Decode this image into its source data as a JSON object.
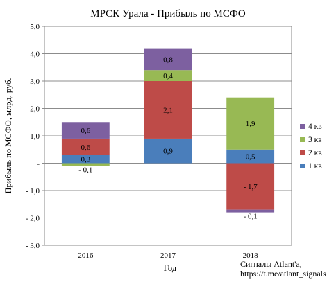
{
  "chart_data": {
    "type": "bar",
    "stacked": true,
    "title": "МРСК Урала - Прибыль по МСФО",
    "xlabel": "Год",
    "ylabel": "Прибыль по МСФО, млрд. руб.",
    "categories": [
      "2016",
      "2017",
      "2018"
    ],
    "ylim": [
      -3.0,
      5.0
    ],
    "y_ticks": [
      -3.0,
      -2.0,
      -1.0,
      0,
      1.0,
      2.0,
      3.0,
      4.0,
      5.0
    ],
    "y_tick_labels": [
      "- 3,0",
      "- 2,0",
      "- 1,0",
      "-",
      "1,0",
      "2,0",
      "3,0",
      "4,0",
      "5,0"
    ],
    "grid": true,
    "legend_position": "right",
    "series": [
      {
        "name": "1 кв",
        "color": "#4a7ebb",
        "values": [
          0.3,
          0.9,
          0.5
        ],
        "labels": [
          "0,3",
          "0,9",
          "0,5"
        ]
      },
      {
        "name": "2 кв",
        "color": "#be4b48",
        "values": [
          0.6,
          2.1,
          -1.7
        ],
        "labels": [
          "0,6",
          "2,1",
          "- 1,7"
        ]
      },
      {
        "name": "3 кв",
        "color": "#98b954",
        "values": [
          -0.1,
          0.4,
          1.9
        ],
        "labels": [
          "- 0,1",
          "0,4",
          "1,9"
        ]
      },
      {
        "name": "4 кв",
        "color": "#7d60a0",
        "values": [
          0.6,
          0.8,
          -0.1
        ],
        "labels": [
          "0,6",
          "0,8",
          "- 0,1"
        ]
      }
    ],
    "annotation": [
      "Сигналы Atlant'a,",
      "https://t.me/atlant_signals"
    ]
  }
}
